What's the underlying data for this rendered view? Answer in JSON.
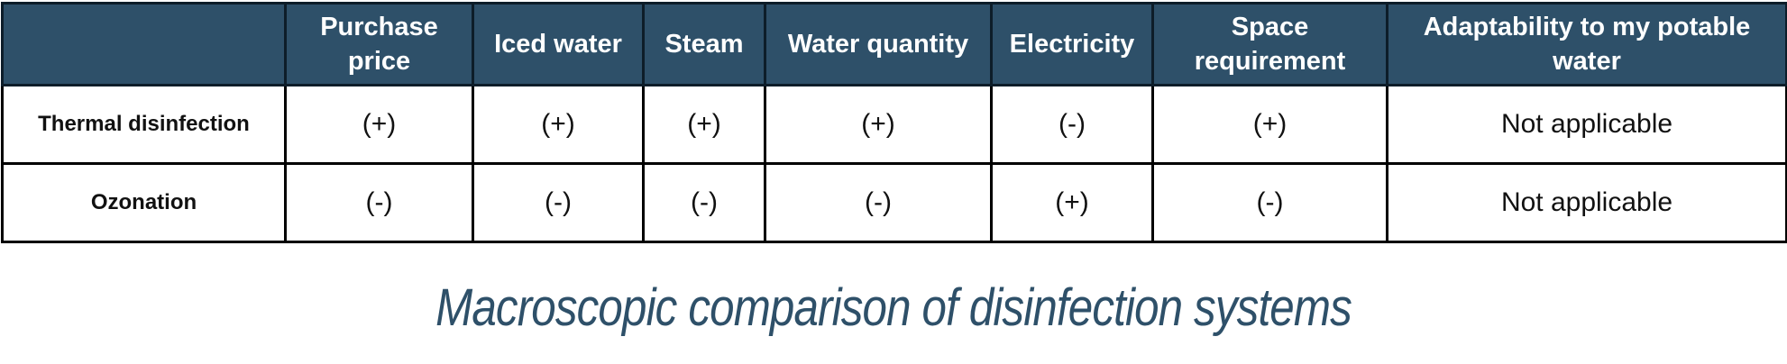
{
  "table": {
    "headers": [
      "Purchase price",
      "Iced water",
      "Steam",
      "Water quantity",
      "Electricity",
      "Space requirement",
      "Adaptability to my potable water"
    ],
    "rows": [
      {
        "label": "Thermal disinfection",
        "cells": [
          "(+)",
          "(+)",
          "(+)",
          "(+)",
          "(-)",
          "(+)",
          "Not applicable"
        ]
      },
      {
        "label": "Ozonation",
        "cells": [
          "(-)",
          "(-)",
          "(-)",
          "(-)",
          "(+)",
          "(-)",
          "Not applicable"
        ]
      }
    ]
  },
  "caption": "Macroscopic comparison of disinfection systems"
}
